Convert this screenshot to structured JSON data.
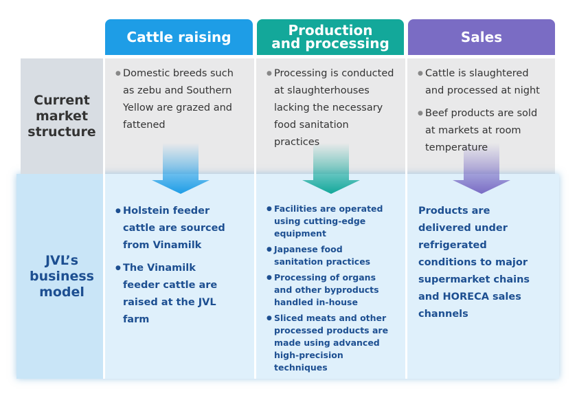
{
  "columns": [
    "Cattle raising",
    "Production\nand processing",
    "Sales"
  ],
  "rows": [
    {
      "label": "Current\nmarket\nstructure",
      "cells": [
        [
          "Domestic breeds such as zebu and Southern Yellow are grazed and fattened"
        ],
        [
          "Processing is conducted at slaughterhouses lacking the necessary food sanitation practices"
        ],
        [
          "Cattle is slaughtered and processed at night",
          "Beef products are sold at markets at room temperature"
        ]
      ]
    },
    {
      "label": "JVL’s\nbusiness\nmodel",
      "cells": [
        [
          "Holstein feeder cattle are sourced from Vinamilk",
          "The Vinamilk feeder cattle are raised at the JVL farm"
        ],
        [
          "Facilities are operated using cutting-edge equipment",
          "Japanese food sanitation practices",
          "Processing of organs and other byproducts handled in-house",
          "Sliced meats and other processed products are made using advanced high-precision techniques"
        ],
        [
          "Products are delivered under refrigerated conditions to major supermarket chains and HORECA sales channels"
        ]
      ]
    }
  ]
}
